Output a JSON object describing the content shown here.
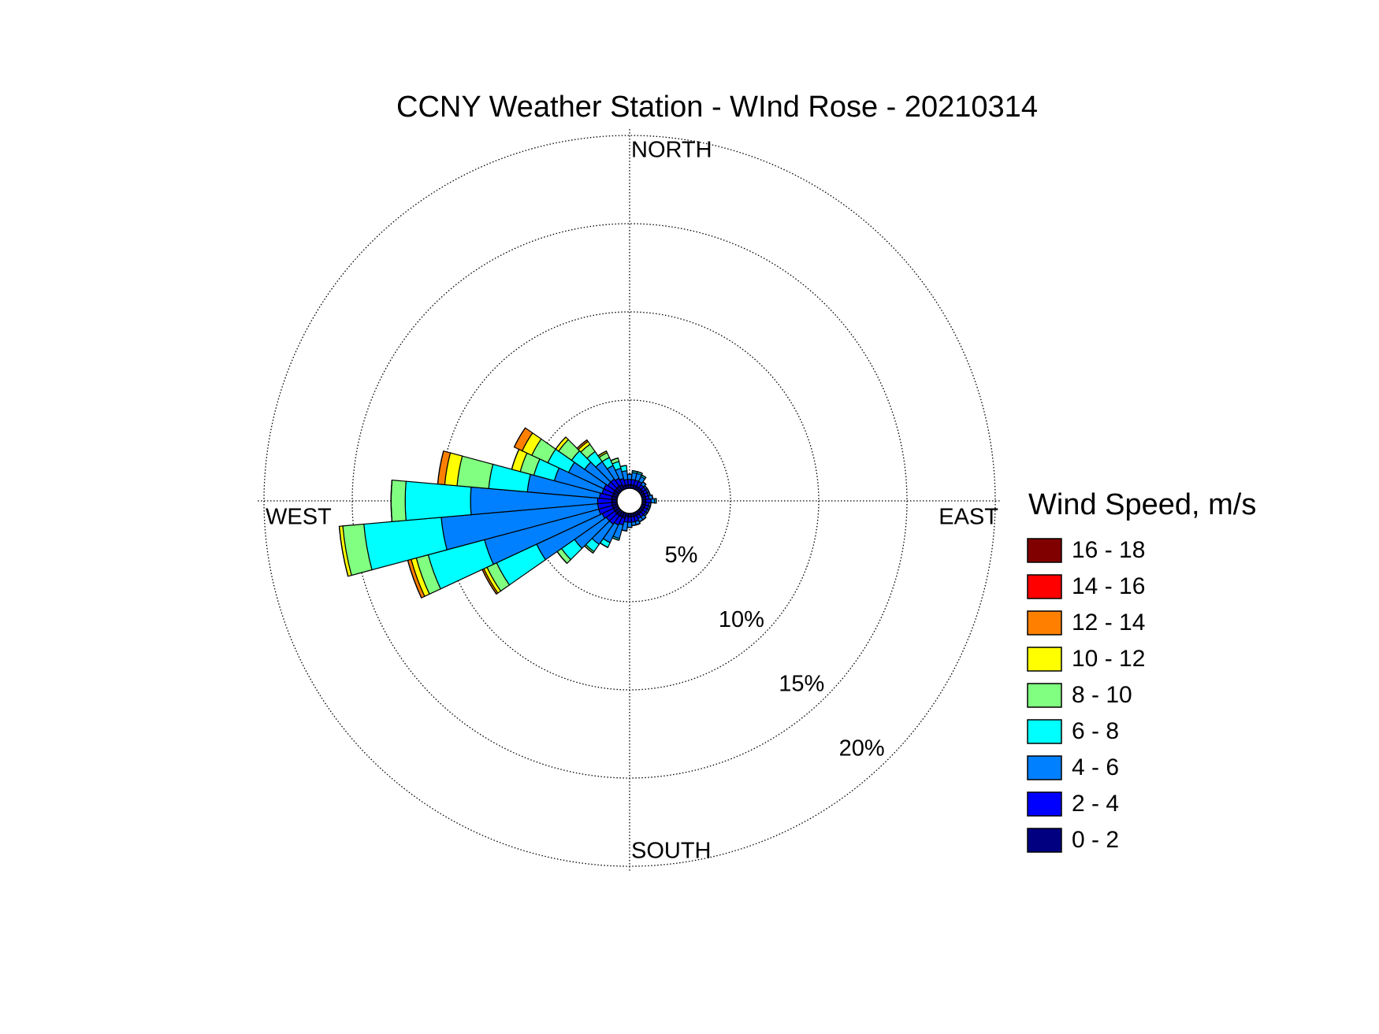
{
  "chart_data": {
    "type": "windrose",
    "title": "CCNY Weather Station - WInd Rose - 20210314",
    "direction_labels": [
      "NORTH",
      "EAST",
      "SOUTH",
      "WEST"
    ],
    "legend_title": "Wind Speed, m/s",
    "x": [
      0,
      10,
      20,
      30,
      40,
      50,
      60,
      70,
      80,
      90,
      100,
      110,
      120,
      130,
      140,
      150,
      160,
      170,
      180,
      190,
      200,
      210,
      220,
      230,
      240,
      250,
      260,
      270,
      280,
      290,
      300,
      310,
      320,
      330,
      340,
      350
    ],
    "ylim": [
      0,
      20
    ],
    "yticks": [
      {
        "value": 5,
        "label": "5%"
      },
      {
        "value": 10,
        "label": "10%"
      },
      {
        "value": 15,
        "label": "15%"
      },
      {
        "value": 20,
        "label": "20%"
      }
    ],
    "series": [
      {
        "name": "0 - 2",
        "color": "#000080",
        "values": [
          0.2,
          0.2,
          0.2,
          0.2,
          0.2,
          0.2,
          0.2,
          0.2,
          0.2,
          0.2,
          0.2,
          0.2,
          0.2,
          0.2,
          0.2,
          0.2,
          0.2,
          0.2,
          0.2,
          0.2,
          0.3,
          0.3,
          0.3,
          0.3,
          0.3,
          0.3,
          0.3,
          0.3,
          0.3,
          0.3,
          0.3,
          0.3,
          0.3,
          0.3,
          0.2,
          0.2
        ]
      },
      {
        "name": "2 - 4",
        "color": "#0000ff",
        "values": [
          0.3,
          0.3,
          0.3,
          0.3,
          0.2,
          0.2,
          0.2,
          0.2,
          0.2,
          0.3,
          0.2,
          0.2,
          0.2,
          0.2,
          0.2,
          0.2,
          0.3,
          0.3,
          0.3,
          0.3,
          0.4,
          0.5,
          0.6,
          0.6,
          0.7,
          0.8,
          0.8,
          0.8,
          0.7,
          0.6,
          0.6,
          0.5,
          0.5,
          0.4,
          0.4,
          0.3
        ]
      },
      {
        "name": "4 - 6",
        "color": "#0080ff",
        "values": [
          0.3,
          0.4,
          0.4,
          0.3,
          0.2,
          0.1,
          0.1,
          0.1,
          0.2,
          0.2,
          0.1,
          0.1,
          0.1,
          0.1,
          0.2,
          0.2,
          0.2,
          0.2,
          0.3,
          0.5,
          0.8,
          1.1,
          1.4,
          2.2,
          4.1,
          6.7,
          8.9,
          7.2,
          4.1,
          2.8,
          2.2,
          1.6,
          1.2,
          0.8,
          0.6,
          0.5
        ]
      },
      {
        "name": "6 - 8",
        "color": "#00ffff",
        "values": [
          0,
          0.1,
          0.1,
          0.1,
          0,
          0,
          0,
          0,
          0,
          0.1,
          0,
          0,
          0,
          0,
          0,
          0,
          0,
          0,
          0,
          0,
          0.1,
          0.3,
          0.5,
          0.9,
          2.5,
          3.3,
          4.4,
          3.7,
          2.2,
          1.2,
          1.3,
          0.9,
          0.7,
          0.5,
          0.4,
          0.3
        ]
      },
      {
        "name": "8 - 10",
        "color": "#80ff80",
        "values": [
          0,
          0,
          0,
          0,
          0,
          0,
          0,
          0,
          0,
          0,
          0,
          0,
          0,
          0,
          0,
          0,
          0,
          0,
          0,
          0,
          0,
          0,
          0.1,
          0.3,
          0.6,
          0.7,
          1.2,
          0.8,
          1.8,
          0.8,
          1.0,
          0.9,
          0.5,
          0.3,
          0.2,
          0
        ]
      },
      {
        "name": "10 - 12",
        "color": "#ffff00",
        "values": [
          0,
          0,
          0,
          0,
          0,
          0,
          0,
          0,
          0,
          0,
          0,
          0,
          0,
          0,
          0,
          0,
          0,
          0,
          0,
          0,
          0,
          0,
          0,
          0,
          0.2,
          0.3,
          0.2,
          0,
          0.7,
          0.5,
          0.6,
          0.2,
          0.2,
          0.1,
          0,
          0
        ]
      },
      {
        "name": "12 - 14",
        "color": "#ff8000",
        "values": [
          0,
          0,
          0,
          0,
          0,
          0,
          0,
          0,
          0,
          0,
          0,
          0,
          0,
          0,
          0,
          0,
          0,
          0,
          0,
          0,
          0,
          0,
          0,
          0,
          0.1,
          0.2,
          0,
          0,
          0.4,
          0,
          0.5,
          0,
          0.1,
          0,
          0,
          0
        ]
      },
      {
        "name": "14 - 16",
        "color": "#ff0000",
        "values": [
          0,
          0,
          0,
          0,
          0,
          0,
          0,
          0,
          0,
          0,
          0,
          0,
          0,
          0,
          0,
          0,
          0,
          0,
          0,
          0,
          0,
          0,
          0,
          0,
          0,
          0,
          0,
          0,
          0,
          0,
          0,
          0,
          0,
          0,
          0,
          0
        ]
      },
      {
        "name": "16 - 18",
        "color": "#800000",
        "values": [
          0,
          0,
          0,
          0,
          0,
          0,
          0,
          0,
          0,
          0,
          0,
          0,
          0,
          0,
          0,
          0,
          0,
          0,
          0,
          0,
          0,
          0,
          0,
          0,
          0,
          0,
          0,
          0,
          0,
          0,
          0,
          0,
          0,
          0,
          0,
          0
        ]
      }
    ]
  }
}
